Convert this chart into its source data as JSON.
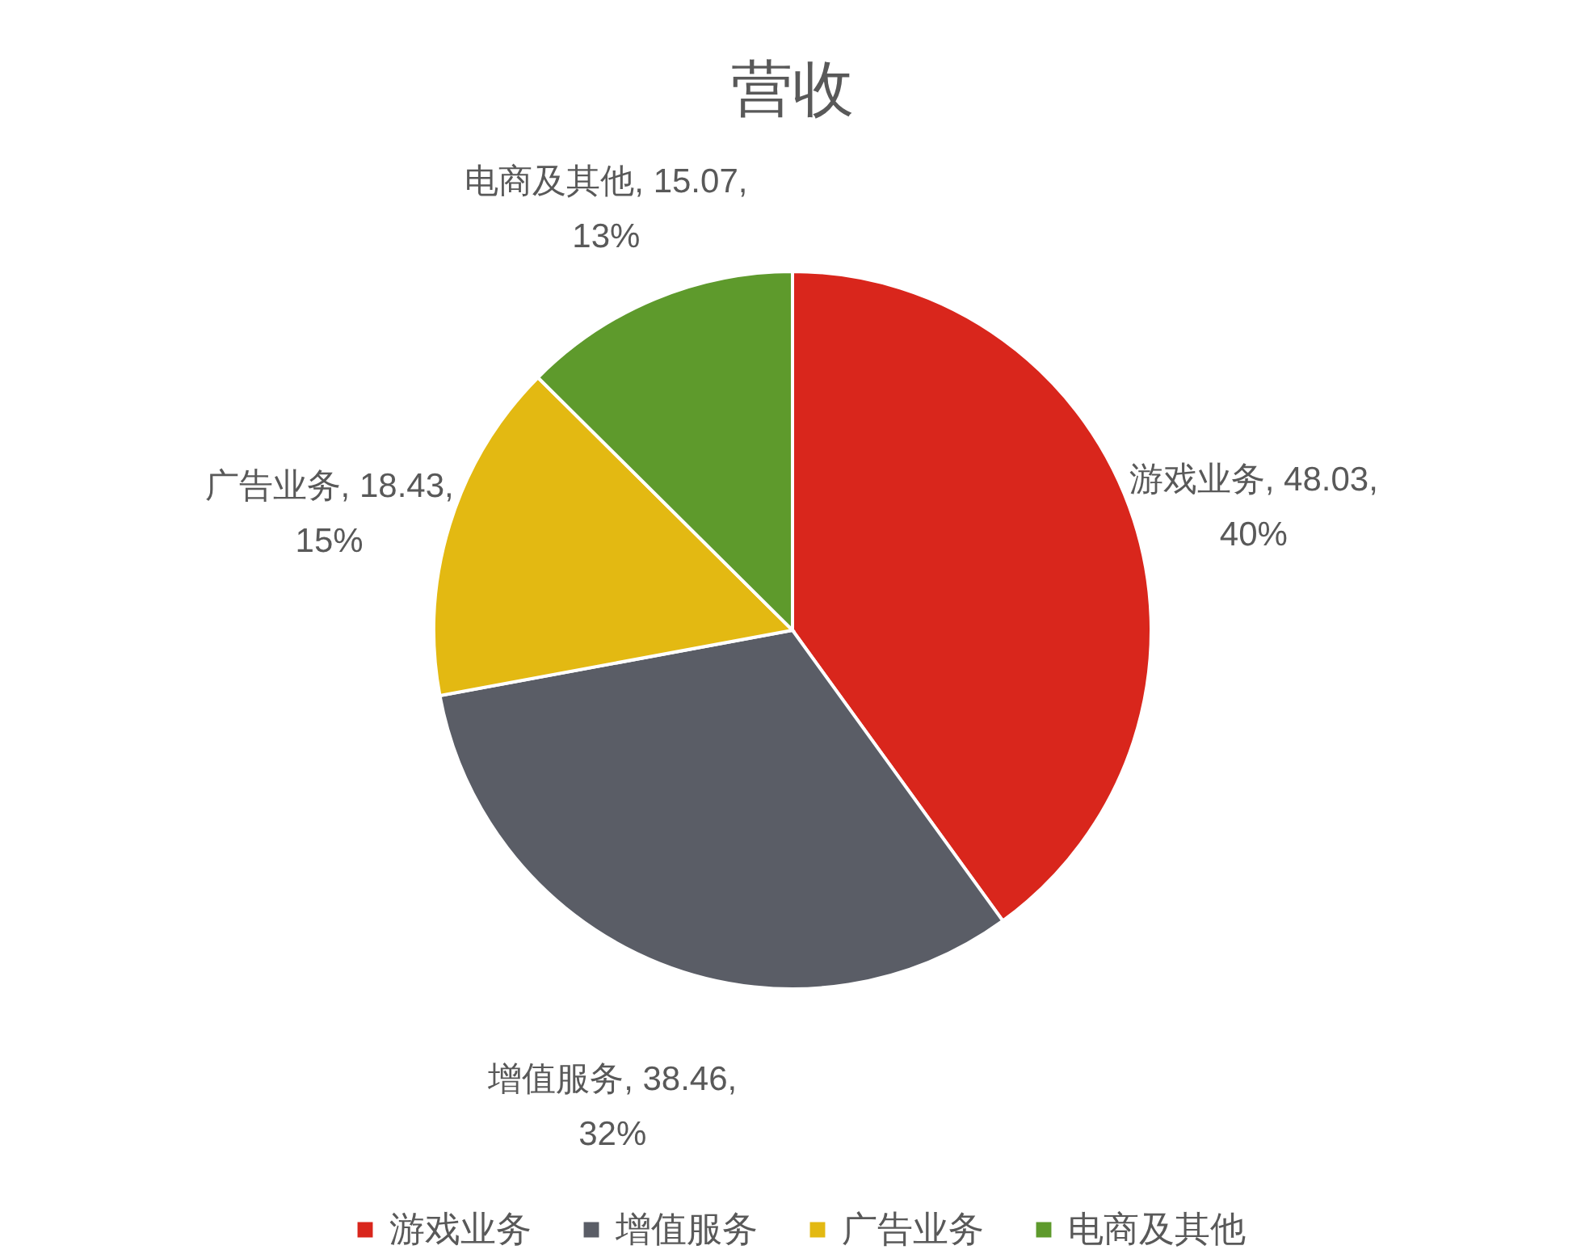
{
  "chart_data": {
    "type": "pie",
    "title": "营收",
    "categories": [
      "游戏业务",
      "增值服务",
      "广告业务",
      "电商及其他"
    ],
    "values": [
      48.03,
      38.46,
      18.43,
      15.07
    ],
    "colors": [
      "#d9261c",
      "#5a5d66",
      "#e3b912",
      "#5e9a2c"
    ],
    "value_labels": [
      "游戏业务, 48.03, 40%",
      "增值服务, 38.46, 32%",
      "广告业务, 18.43, 15%",
      "电商及其他, 15.07, 13%"
    ],
    "legend": "bottom"
  }
}
